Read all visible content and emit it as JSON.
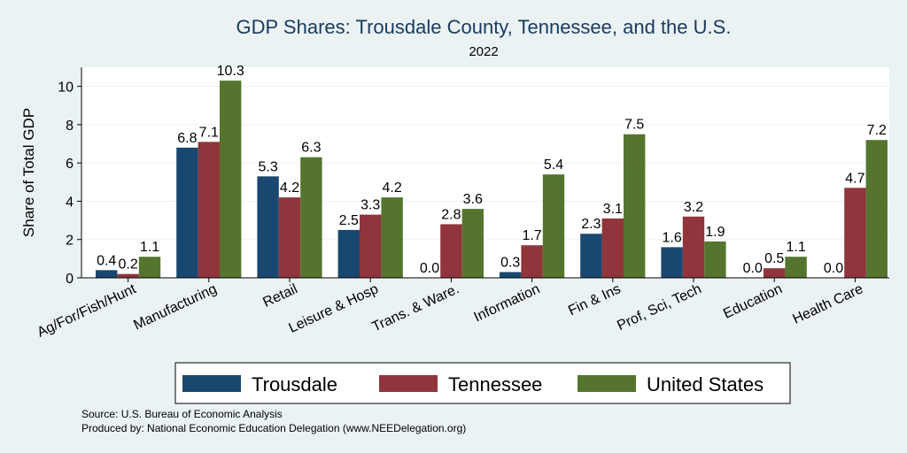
{
  "chart_data": {
    "type": "bar",
    "title": "GDP Shares: Trousdale County, Tennessee, and the U.S.",
    "subtitle": "2022",
    "ylabel": "Share of Total GDP",
    "xlabel": "",
    "ylim": [
      0,
      11
    ],
    "yticks": [
      0,
      2,
      4,
      6,
      8,
      10
    ],
    "grid": true,
    "legend_position": "bottom",
    "categories": [
      "Ag/For/Fish/Hunt",
      "Manufacturing",
      "Retail",
      "Leisure & Hosp",
      "Trans. & Ware.",
      "Information",
      "Fin & Ins",
      "Prof, Sci, Tech",
      "Education",
      "Health Care"
    ],
    "series": [
      {
        "name": "Trousdale",
        "color": "#1a476f",
        "values": [
          0.4,
          6.8,
          5.3,
          2.5,
          0.0,
          0.3,
          2.3,
          1.6,
          0.0,
          0.0
        ]
      },
      {
        "name": "Tennessee",
        "color": "#90353b",
        "values": [
          0.2,
          7.1,
          4.2,
          3.3,
          2.8,
          1.7,
          3.1,
          3.2,
          0.5,
          4.7
        ]
      },
      {
        "name": "United States",
        "color": "#55752f",
        "values": [
          1.1,
          10.3,
          6.3,
          4.2,
          3.6,
          5.4,
          7.5,
          1.9,
          1.1,
          7.2
        ]
      }
    ]
  },
  "footer": {
    "source": "Source: U.S. Bureau of Economic Analysis",
    "produced_by": "Produced by: National Economic Education Delegation (www.NEEDelegation.org)"
  }
}
